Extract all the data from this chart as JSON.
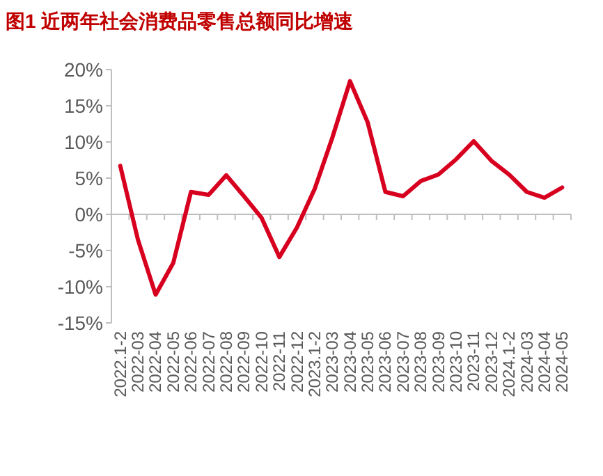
{
  "chart_data": {
    "type": "line",
    "title": "图1  近两年社会消费品零售总额同比增速",
    "categories": [
      "2022.1-2",
      "2022-03",
      "2022-04",
      "2022-05",
      "2022-06",
      "2022-07",
      "2022-08",
      "2022-09",
      "2022-10",
      "2022-11",
      "2022-12",
      "2023.1-2",
      "2023-03",
      "2023-04",
      "2023-05",
      "2023-06",
      "2023-07",
      "2023-08",
      "2023-09",
      "2023-10",
      "2023-11",
      "2023-12",
      "2024.1-2",
      "2024-03",
      "2024-04",
      "2024-05"
    ],
    "series": [
      {
        "color": "#d7001f",
        "values": [
          6.7,
          -3.5,
          -11.1,
          -6.7,
          3.1,
          2.7,
          5.4,
          2.5,
          -0.5,
          -5.9,
          -1.8,
          3.5,
          10.6,
          18.4,
          12.7,
          3.1,
          2.5,
          4.6,
          5.5,
          7.6,
          10.1,
          7.4,
          5.5,
          3.1,
          2.3,
          3.7
        ]
      }
    ],
    "ylim": [
      -15,
      20
    ],
    "yticks": [
      {
        "value": -15,
        "label": "-15%"
      },
      {
        "value": -10,
        "label": "-10%"
      },
      {
        "value": -5,
        "label": "-5%"
      },
      {
        "value": 0,
        "label": "0%"
      },
      {
        "value": 5,
        "label": "5%"
      },
      {
        "value": 10,
        "label": "10%"
      },
      {
        "value": 15,
        "label": "15%"
      },
      {
        "value": 20,
        "label": "20%"
      }
    ],
    "marker": "none",
    "line_style": "solid"
  }
}
